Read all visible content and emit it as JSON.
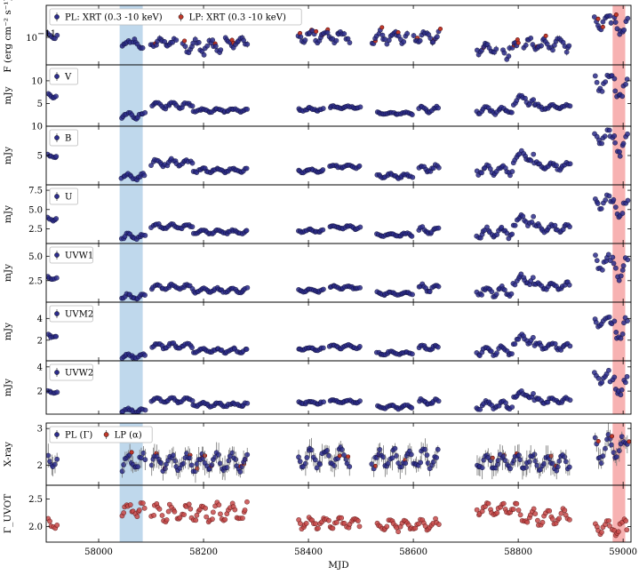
{
  "chart_data": {
    "type": "scatter",
    "xlabel": "MJD",
    "xlim": [
      57900,
      59015
    ],
    "x_ticks": [
      58000,
      58200,
      58400,
      58600,
      58800,
      59000
    ],
    "highlight_bands": [
      {
        "x": [
          58040,
          58084
        ],
        "color": "#b8d4ea"
      },
      {
        "x": [
          58980,
          59004
        ],
        "color": "#f6aaaa"
      }
    ],
    "series_colors": {
      "pl": "#2d2d8c",
      "lp": "#c0392b",
      "gamma": "#c84b4b"
    },
    "panels": [
      {
        "id": "xrt",
        "ylabel": "F (erg cm⁻² s⁻¹)",
        "ylim": [
          0.4,
          2.9
        ],
        "ticks": [],
        "log": true,
        "tick_text": "10",
        "tick_exp": "−11",
        "tick_value": 1.0,
        "legend": [
          {
            "label": "PL: XRT (0.3 -10 keV)",
            "series": "pl"
          },
          {
            "label": "LP: XRT (0.3 -10 keV)",
            "series": "lp"
          }
        ],
        "segments": [
          [
            57902,
            57922,
            0.95,
            1.2
          ],
          [
            58043,
            58062,
            0.7,
            0.9
          ],
          [
            58064,
            58085,
            0.65,
            0.95
          ],
          [
            58098,
            58150,
            0.7,
            1.0
          ],
          [
            58160,
            58235,
            0.55,
            0.95
          ],
          [
            58240,
            58285,
            0.7,
            1.0
          ],
          [
            58380,
            58480,
            0.8,
            1.3
          ],
          [
            58520,
            58590,
            0.75,
            1.3
          ],
          [
            58600,
            58650,
            0.8,
            1.25
          ],
          [
            58720,
            58760,
            0.55,
            0.85
          ],
          [
            58770,
            58800,
            0.45,
            0.9
          ],
          [
            58810,
            58900,
            0.6,
            1.0
          ],
          [
            58945,
            58980,
            1.2,
            2.3
          ],
          [
            58982,
            59010,
            0.9,
            2.1
          ]
        ]
      },
      {
        "id": "v",
        "ylabel": "mJy",
        "ylim": [
          0,
          13.5
        ],
        "ticks": [
          5,
          10
        ],
        "log": false,
        "legend": [
          {
            "label": "V",
            "series": "pl"
          }
        ],
        "segments": [
          [
            57902,
            57922,
            6.0,
            7.5
          ],
          [
            58043,
            58090,
            1.5,
            3.2
          ],
          [
            58100,
            58180,
            3.8,
            5.5
          ],
          [
            58180,
            58285,
            3.0,
            4.0
          ],
          [
            58380,
            58430,
            3.2,
            4.2
          ],
          [
            58440,
            58500,
            3.8,
            4.5
          ],
          [
            58530,
            58600,
            2.5,
            3.2
          ],
          [
            58610,
            58650,
            2.8,
            4.5
          ],
          [
            58720,
            58790,
            2.5,
            4.5
          ],
          [
            58790,
            58830,
            4.5,
            7.0
          ],
          [
            58830,
            58900,
            3.5,
            5.0
          ],
          [
            58945,
            58975,
            7.0,
            12.0
          ],
          [
            58975,
            59010,
            5.0,
            11.5
          ]
        ]
      },
      {
        "id": "b",
        "ylabel": "mJy",
        "ylim": [
          0,
          10
        ],
        "ticks": [
          5,
          10
        ],
        "log": false,
        "legend": [
          {
            "label": "B",
            "series": "pl"
          }
        ],
        "segments": [
          [
            57902,
            57922,
            4.5,
            5.5
          ],
          [
            58043,
            58090,
            0.8,
            2.0
          ],
          [
            58100,
            58180,
            3.0,
            4.5
          ],
          [
            58180,
            58285,
            2.0,
            3.0
          ],
          [
            58380,
            58430,
            2.0,
            2.8
          ],
          [
            58440,
            58500,
            2.8,
            3.5
          ],
          [
            58530,
            58600,
            1.0,
            2.0
          ],
          [
            58610,
            58650,
            2.0,
            3.5
          ],
          [
            58720,
            58790,
            1.5,
            3.5
          ],
          [
            58790,
            58830,
            3.5,
            6.0
          ],
          [
            58830,
            58900,
            2.5,
            4.0
          ],
          [
            58945,
            58975,
            6.5,
            9.5
          ],
          [
            58975,
            59010,
            4.5,
            9.0
          ]
        ]
      },
      {
        "id": "u",
        "ylabel": "mJy",
        "ylim": [
          0.6,
          8.2
        ],
        "ticks": [
          2.5,
          5.0,
          7.5
        ],
        "tick_labels": [
          "2.5",
          "5.0",
          "7.5"
        ],
        "log": false,
        "legend": [
          {
            "label": "U",
            "series": "pl"
          }
        ],
        "segments": [
          [
            57902,
            57922,
            3.5,
            4.2
          ],
          [
            58043,
            58090,
            1.0,
            2.0
          ],
          [
            58100,
            58180,
            2.4,
            3.2
          ],
          [
            58180,
            58285,
            1.8,
            2.4
          ],
          [
            58380,
            58430,
            2.0,
            2.5
          ],
          [
            58440,
            58500,
            2.4,
            3.0
          ],
          [
            58530,
            58600,
            1.5,
            2.0
          ],
          [
            58610,
            58650,
            1.8,
            2.8
          ],
          [
            58720,
            58790,
            1.2,
            2.8
          ],
          [
            58790,
            58830,
            2.8,
            4.5
          ],
          [
            58830,
            58900,
            2.0,
            3.2
          ],
          [
            58945,
            58975,
            5.0,
            7.2
          ],
          [
            58975,
            59010,
            3.5,
            6.8
          ]
        ]
      },
      {
        "id": "uvw1",
        "ylabel": "mJy",
        "ylim": [
          0.3,
          6.3
        ],
        "ticks": [
          2.5,
          5.0
        ],
        "tick_labels": [
          "2.5",
          "5.0"
        ],
        "log": false,
        "legend": [
          {
            "label": "UVW1",
            "series": "pl"
          }
        ],
        "segments": [
          [
            57902,
            57922,
            2.6,
            3.0
          ],
          [
            58043,
            58090,
            0.5,
            1.2
          ],
          [
            58100,
            58180,
            1.5,
            2.2
          ],
          [
            58180,
            58285,
            1.2,
            1.8
          ],
          [
            58380,
            58430,
            1.3,
            1.7
          ],
          [
            58440,
            58500,
            1.6,
            2.0
          ],
          [
            58530,
            58600,
            1.0,
            1.4
          ],
          [
            58610,
            58650,
            1.3,
            2.2
          ],
          [
            58720,
            58790,
            0.8,
            2.0
          ],
          [
            58790,
            58830,
            2.0,
            3.2
          ],
          [
            58830,
            58900,
            1.5,
            2.4
          ],
          [
            58945,
            58975,
            3.5,
            5.4
          ],
          [
            58975,
            59010,
            2.5,
            5.0
          ]
        ]
      },
      {
        "id": "uvm2",
        "ylabel": "mJy",
        "ylim": [
          0.1,
          5.5
        ],
        "ticks": [
          2,
          4
        ],
        "log": false,
        "legend": [
          {
            "label": "UVM2",
            "series": "pl"
          }
        ],
        "segments": [
          [
            57902,
            57922,
            2.2,
            2.6
          ],
          [
            58043,
            58090,
            0.3,
            0.8
          ],
          [
            58100,
            58180,
            1.2,
            1.8
          ],
          [
            58180,
            58285,
            0.8,
            1.3
          ],
          [
            58380,
            58430,
            1.0,
            1.4
          ],
          [
            58440,
            58500,
            1.2,
            1.6
          ],
          [
            58530,
            58600,
            0.6,
            1.0
          ],
          [
            58610,
            58650,
            0.9,
            1.7
          ],
          [
            58720,
            58790,
            0.5,
            1.6
          ],
          [
            58790,
            58830,
            1.6,
            2.6
          ],
          [
            58830,
            58900,
            1.0,
            1.9
          ],
          [
            58945,
            58975,
            3.0,
            4.6
          ],
          [
            58975,
            59010,
            1.8,
            4.2
          ]
        ]
      },
      {
        "id": "uvw2",
        "ylabel": "mJy",
        "ylim": [
          0.1,
          4.5
        ],
        "ticks": [
          2,
          4
        ],
        "log": false,
        "legend": [
          {
            "label": "UVW2",
            "series": "pl"
          }
        ],
        "segments": [
          [
            57902,
            57922,
            1.8,
            2.1
          ],
          [
            58043,
            58090,
            0.2,
            0.6
          ],
          [
            58100,
            58180,
            1.0,
            1.5
          ],
          [
            58180,
            58285,
            0.7,
            1.1
          ],
          [
            58380,
            58430,
            0.9,
            1.2
          ],
          [
            58440,
            58500,
            1.0,
            1.3
          ],
          [
            58530,
            58600,
            0.5,
            0.9
          ],
          [
            58610,
            58650,
            0.8,
            1.4
          ],
          [
            58720,
            58790,
            0.4,
            1.3
          ],
          [
            58790,
            58830,
            1.3,
            2.1
          ],
          [
            58830,
            58900,
            0.9,
            1.5
          ],
          [
            58945,
            58975,
            2.6,
            3.8
          ],
          [
            58975,
            59010,
            1.4,
            3.4
          ]
        ]
      },
      {
        "id": "gamma_x",
        "ylabel": "X-ray",
        "ylim": [
          1.45,
          3.15
        ],
        "ticks": [
          2,
          3
        ],
        "log": false,
        "error_bars": true,
        "legend": [
          {
            "label": "PL (Γ)",
            "series": "pl"
          },
          {
            "label": "LP (α)",
            "series": "lp"
          }
        ],
        "segments": [
          [
            57902,
            57922,
            1.95,
            2.35
          ],
          [
            58043,
            58090,
            1.8,
            2.35
          ],
          [
            58100,
            58285,
            1.8,
            2.35
          ],
          [
            58380,
            58480,
            1.9,
            2.5
          ],
          [
            58520,
            58650,
            1.85,
            2.5
          ],
          [
            58720,
            58900,
            1.8,
            2.35
          ],
          [
            58945,
            59010,
            2.0,
            2.9
          ]
        ]
      },
      {
        "id": "gamma_uvot",
        "ylabel": "Γ_UVOT",
        "ylim": [
          1.72,
          2.75
        ],
        "ticks": [
          2.0,
          2.5
        ],
        "tick_labels": [
          "2.0",
          "2.5"
        ],
        "log": false,
        "segments": [
          [
            57902,
            57922,
            1.95,
            2.2
          ],
          [
            58043,
            58090,
            2.15,
            2.45
          ],
          [
            58100,
            58285,
            2.05,
            2.45
          ],
          [
            58380,
            58500,
            1.95,
            2.2
          ],
          [
            58530,
            58650,
            1.9,
            2.15
          ],
          [
            58720,
            58800,
            2.2,
            2.45
          ],
          [
            58800,
            58900,
            2.0,
            2.35
          ],
          [
            58945,
            59010,
            1.82,
            2.15
          ]
        ]
      }
    ]
  }
}
